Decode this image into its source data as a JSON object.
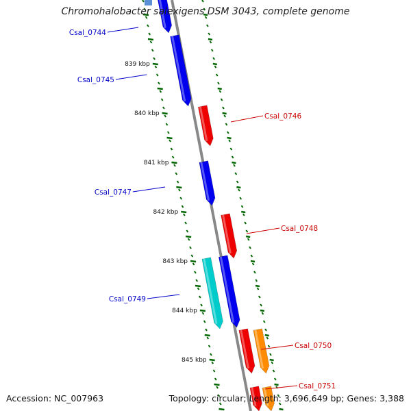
{
  "title": "Chromohalobacter salexigens DSM 3043, complete genome",
  "footer": {
    "accession": "Accession: NC_007963",
    "summary": "Topology: circular; Length: 3,696,649 bp; Genes: 3,388"
  },
  "colors": {
    "forward_gene": "#0000ee",
    "reverse_gene": "#ee0000",
    "cds_cyan": "#00cccc",
    "cds_orange": "#ff8c00",
    "backbone": "#888888",
    "ticks": "#006600",
    "forward_label": "#0000cc",
    "reverse_label": "#cc0000"
  },
  "ruler": {
    "unit": "kbp",
    "ticks": [
      {
        "label": "839 kbp",
        "kbp": 839
      },
      {
        "label": "840 kbp",
        "kbp": 840
      },
      {
        "label": "841 kbp",
        "kbp": 841
      },
      {
        "label": "842 kbp",
        "kbp": 842
      },
      {
        "label": "843 kbp",
        "kbp": 843
      },
      {
        "label": "844 kbp",
        "kbp": 844
      },
      {
        "label": "845 kbp",
        "kbp": 845
      }
    ]
  },
  "genes": [
    {
      "id": "Csal_0744",
      "label": "Csal_0744",
      "strand": "forward",
      "type": "gene",
      "start_kbp": 838.3,
      "end_kbp": 838.35
    },
    {
      "id": "Csal_0745",
      "label": "Csal_0745",
      "strand": "forward",
      "type": "gene",
      "start_kbp": 838.55,
      "end_kbp": 839.9
    },
    {
      "id": "Csal_0746",
      "label": "Csal_0746",
      "strand": "reverse",
      "type": "gene",
      "start_kbp": 839.9,
      "end_kbp": 840.7
    },
    {
      "id": "Csal_0747",
      "label": "Csal_0747",
      "strand": "forward",
      "type": "gene",
      "start_kbp": 841.0,
      "end_kbp": 841.85
    },
    {
      "id": "Csal_0748",
      "label": "Csal_0748",
      "strand": "reverse",
      "type": "gene",
      "start_kbp": 842.05,
      "end_kbp": 842.9
    },
    {
      "id": "Csal_0749",
      "label": "Csal_0749",
      "strand": "forward",
      "type": "gene",
      "start_kbp": 842.95,
      "end_kbp": 844.4
    },
    {
      "id": "Csal_0750",
      "label": "Csal_0750",
      "strand": "reverse",
      "type": "gene",
      "start_kbp": 844.35,
      "end_kbp": 845.2
    },
    {
      "id": "Csal_0751",
      "label": "Csal_0751",
      "strand": "reverse",
      "type": "gene",
      "start_kbp": 845.25,
      "end_kbp": 845.6
    }
  ]
}
